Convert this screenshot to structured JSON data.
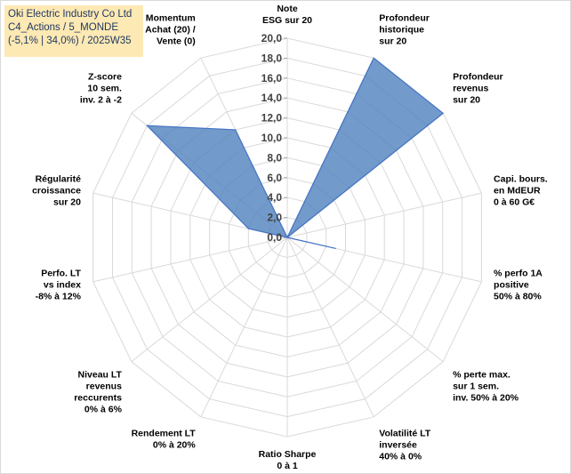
{
  "title_box": {
    "line1": "Oki Electric Industry Co Ltd",
    "line2": "C4_Actions / 5_MONDE",
    "line3": "(-5,1% | 34,0%) / 2025W35",
    "background": "#fde9b3",
    "text_color": "#1f3864"
  },
  "chart_data": {
    "type": "radar",
    "rmin": 0,
    "rmax": 20,
    "tick_step": 2,
    "tick_labels": [
      "0,0",
      "2,0",
      "4,0",
      "6,0",
      "8,0",
      "10,0",
      "12,0",
      "14,0",
      "16,0",
      "18,0",
      "20,0"
    ],
    "grid": true,
    "fill_color": "#4f81bd",
    "stroke_color": "#4472c4",
    "categories": [
      {
        "label": [
          "Note",
          "ESG sur 20"
        ],
        "value": 0
      },
      {
        "label": [
          "Profondeur",
          "historique",
          "sur 20"
        ],
        "value": 20
      },
      {
        "label": [
          "Profondeur",
          "revenus",
          "sur 20"
        ],
        "value": 20
      },
      {
        "label": [
          "Capi. bours.",
          "en MdEUR",
          "0 à 60 G€"
        ],
        "value": 0
      },
      {
        "label": [
          "% perfo 1A",
          "positive",
          "50% à 80%"
        ],
        "value": 5
      },
      {
        "label": [
          "% perte max.",
          "sur 1 sem.",
          "inv. 50% à 20%"
        ],
        "value": 0
      },
      {
        "label": [
          "Volatilité LT",
          "inversée",
          "40% à 0%"
        ],
        "value": 0
      },
      {
        "label": [
          "Ratio Sharpe",
          "0 à 1"
        ],
        "value": 0
      },
      {
        "label": [
          "Rendement LT",
          "0% à 20%"
        ],
        "value": 0
      },
      {
        "label": [
          "Niveau LT",
          "revenus",
          "reccurents",
          "0% à 6%"
        ],
        "value": 0
      },
      {
        "label": [
          "Perfo. LT",
          "vs index",
          "-8% à 12%"
        ],
        "value": 0
      },
      {
        "label": [
          "Régularité",
          "croissance",
          "sur 20"
        ],
        "value": 4
      },
      {
        "label": [
          "Z-score",
          "10 sem.",
          "inv. 2 à -2"
        ],
        "value": 18
      },
      {
        "label": [
          "Momentum",
          "Achat (20) /",
          "Vente (0)"
        ],
        "value": 12
      }
    ]
  }
}
